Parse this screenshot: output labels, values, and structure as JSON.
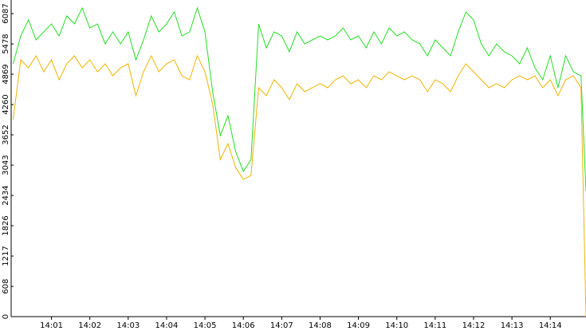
{
  "chart_data": {
    "type": "line",
    "x": [
      0,
      0.2,
      0.4,
      0.6,
      0.8,
      1,
      1.2,
      1.4,
      1.6,
      1.8,
      2,
      2.2,
      2.4,
      2.6,
      2.8,
      3,
      3.2,
      3.4,
      3.6,
      3.8,
      4,
      4.2,
      4.4,
      4.6,
      4.8,
      5,
      5.2,
      5.4,
      5.6,
      5.8,
      6,
      6.2,
      6.4,
      6.6,
      6.8,
      7,
      7.2,
      7.4,
      7.6,
      7.8,
      8,
      8.2,
      8.4,
      8.6,
      8.8,
      9,
      9.2,
      9.4,
      9.6,
      9.8,
      10,
      10.2,
      10.4,
      10.6,
      10.8,
      11,
      11.2,
      11.4,
      11.6,
      11.8,
      12,
      12.2,
      12.4,
      12.6,
      12.8,
      13,
      13.2,
      13.4,
      13.6,
      13.8,
      14,
      14.2,
      14.4,
      14.6,
      14.8,
      14.93
    ],
    "series": [
      {
        "color": "#22e022",
        "values": [
          5078,
          5639,
          5959,
          5559,
          5719,
          5879,
          5639,
          6040,
          5879,
          6200,
          5799,
          5879,
          5479,
          5719,
          5479,
          5719,
          5158,
          5559,
          6040,
          5719,
          5879,
          6120,
          5639,
          5719,
          6200,
          5719,
          4518,
          3637,
          4037,
          3316,
          2916,
          3156,
          5879,
          5399,
          5719,
          5639,
          5319,
          5719,
          5479,
          5559,
          5639,
          5559,
          5639,
          5799,
          5559,
          5639,
          5399,
          5719,
          5479,
          5799,
          5639,
          5719,
          5559,
          5479,
          5239,
          5559,
          5399,
          5239,
          5719,
          6120,
          5959,
          5479,
          5239,
          5479,
          5319,
          5239,
          5078,
          5399,
          4998,
          4758,
          5239,
          4598,
          5239,
          4918,
          4838,
          2515
        ]
      },
      {
        "color": "#f0b400",
        "values": [
          3957,
          5158,
          4998,
          5239,
          4918,
          5158,
          4758,
          5078,
          5239,
          4998,
          5158,
          4918,
          5078,
          4838,
          4998,
          5078,
          4438,
          4918,
          5239,
          4918,
          5078,
          5158,
          4838,
          4758,
          5239,
          4918,
          4277,
          3156,
          3476,
          2996,
          2755,
          2836,
          4598,
          4438,
          4758,
          4598,
          4357,
          4678,
          4518,
          4598,
          4678,
          4598,
          4758,
          4838,
          4678,
          4758,
          4598,
          4838,
          4758,
          4918,
          4838,
          4758,
          4838,
          4758,
          4518,
          4758,
          4678,
          4518,
          4838,
          5078,
          4918,
          4758,
          4598,
          4678,
          4598,
          4758,
          4838,
          4758,
          4838,
          4598,
          4758,
          4438,
          4758,
          4838,
          4598,
          0
        ]
      }
    ],
    "xlim": [
      -0.05,
      14.93
    ],
    "xticks": [
      {
        "value": 1,
        "label": "14:01"
      },
      {
        "value": 2,
        "label": "14:02"
      },
      {
        "value": 3,
        "label": "14:03"
      },
      {
        "value": 4,
        "label": "14:04"
      },
      {
        "value": 5,
        "label": "14:05"
      },
      {
        "value": 6,
        "label": "14:06"
      },
      {
        "value": 7,
        "label": "14:07"
      },
      {
        "value": 8,
        "label": "14:08"
      },
      {
        "value": 9,
        "label": "14:09"
      },
      {
        "value": 10,
        "label": "14:10"
      },
      {
        "value": 11,
        "label": "14:11"
      },
      {
        "value": 12,
        "label": "14:12"
      },
      {
        "value": 13,
        "label": "14:13"
      },
      {
        "value": 14,
        "label": "14:14"
      }
    ],
    "ylim": [
      0,
      6360
    ],
    "yticks": [
      0,
      608,
      1217,
      1826,
      2434,
      3043,
      3652,
      4260,
      4869,
      5478,
      6087
    ]
  }
}
